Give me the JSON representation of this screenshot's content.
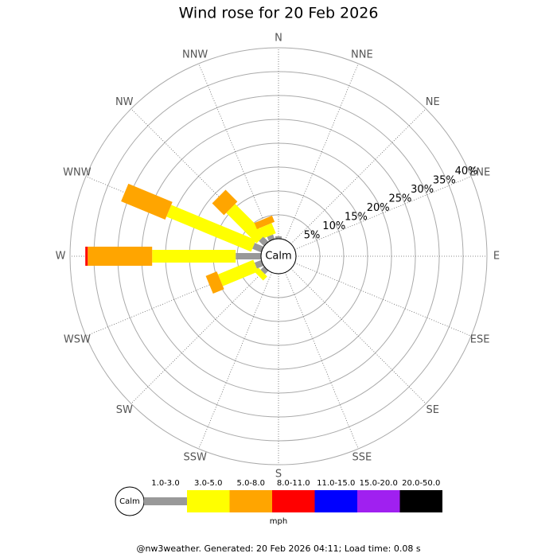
{
  "chart_data": {
    "type": "windrose",
    "title": "Wind rose for 20 Feb 2026",
    "categories": [
      "N",
      "NNE",
      "NE",
      "ENE",
      "E",
      "ESE",
      "SE",
      "SSE",
      "S",
      "SSW",
      "SW",
      "WSW",
      "W",
      "WNW",
      "NW",
      "NNW"
    ],
    "calm_label": "Calm",
    "ylim": [
      0,
      40
    ],
    "yticks": [
      {
        "value": 5,
        "label": "5%"
      },
      {
        "value": 10,
        "label": "10%"
      },
      {
        "value": 15,
        "label": "15%"
      },
      {
        "value": 20,
        "label": "20%"
      },
      {
        "value": 25,
        "label": "25%"
      },
      {
        "value": 30,
        "label": "30%"
      },
      {
        "value": 35,
        "label": "35%"
      },
      {
        "value": 40,
        "label": "40%"
      }
    ],
    "series": [
      {
        "name": "1.0-3.0",
        "color": "#999999",
        "values": [
          0.5,
          0,
          0,
          0,
          0,
          0,
          0,
          0,
          0,
          0,
          1,
          1.5,
          5.3,
          2,
          1.5,
          1
        ]
      },
      {
        "name": "3.0-5.0",
        "color": "#ffff00",
        "values": [
          0,
          0,
          0,
          0,
          0,
          0,
          0,
          0,
          0,
          0,
          1.2,
          8,
          17.5,
          19.2,
          9,
          2.3
        ]
      },
      {
        "name": "5.0-8.0",
        "color": "#ffa500",
        "values": [
          0,
          0,
          0,
          0,
          0,
          0,
          0,
          0,
          0,
          0,
          0,
          2.5,
          13.5,
          10,
          3.5,
          1.4
        ]
      },
      {
        "name": "8.0-11.0",
        "color": "#ff0000",
        "values": [
          0,
          0,
          0,
          0,
          0,
          0,
          0,
          0,
          0,
          0,
          0,
          0,
          0.5,
          0,
          0,
          0
        ]
      },
      {
        "name": "11.0-15.0",
        "color": "#0000ff",
        "values": [
          0,
          0,
          0,
          0,
          0,
          0,
          0,
          0,
          0,
          0,
          0,
          0,
          0,
          0,
          0,
          0
        ]
      },
      {
        "name": "15.0-20.0",
        "color": "#a020f0",
        "values": [
          0,
          0,
          0,
          0,
          0,
          0,
          0,
          0,
          0,
          0,
          0,
          0,
          0,
          0,
          0,
          0
        ]
      },
      {
        "name": "20.0-50.0",
        "color": "#000000",
        "values": [
          0,
          0,
          0,
          0,
          0,
          0,
          0,
          0,
          0,
          0,
          0,
          0,
          0,
          0,
          0,
          0
        ]
      }
    ],
    "unit": "mph"
  },
  "footer": "@nw3weather. Generated: 20 Feb 2026 04:11; Load time: 0.08 s"
}
